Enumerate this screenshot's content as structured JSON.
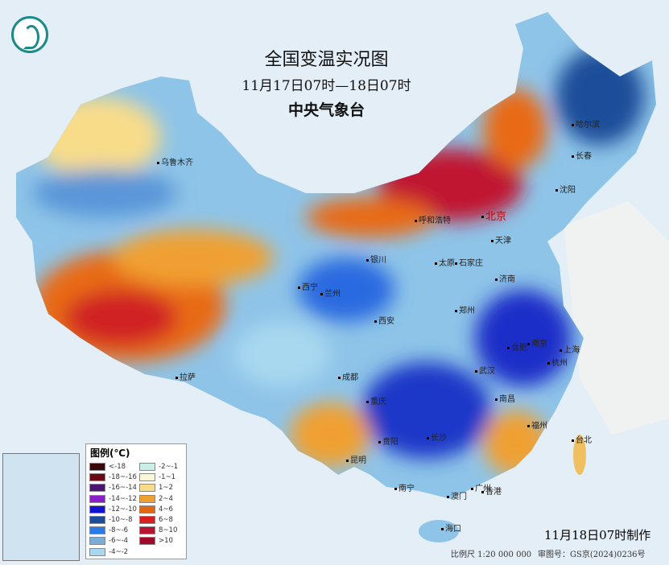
{
  "title": "全国变温实况图",
  "period": "11月17日07时—18日07时",
  "issuer": "中央气象台",
  "cities": [
    "乌鲁木齐",
    "哈尔滨",
    "长春",
    "沈阳",
    "北京",
    "天津",
    "呼和浩特",
    "银川",
    "太原",
    "石家庄",
    "济南",
    "西宁",
    "兰州",
    "郑州",
    "西安",
    "合肥",
    "南京",
    "上海",
    "武汉",
    "杭州",
    "南昌",
    "成都",
    "重庆",
    "拉萨",
    "贵阳",
    "长沙",
    "福州",
    "台北",
    "昆明",
    "南宁",
    "广州",
    "澳门",
    "香港",
    "海口"
  ],
  "legend": {
    "title": "图例(℃)",
    "items": [
      {
        "label": "<-18",
        "color": "#3a0a0a"
      },
      {
        "label": "-18~-16",
        "color": "#6b0a14"
      },
      {
        "label": "-16~-14",
        "color": "#4a1470"
      },
      {
        "label": "-14~-12",
        "color": "#8a1ec8"
      },
      {
        "label": "-12~-10",
        "color": "#1414d0"
      },
      {
        "label": "-10~-8",
        "color": "#1a4e9a"
      },
      {
        "label": "-8~-6",
        "color": "#2a7ae8"
      },
      {
        "label": "-6~-4",
        "color": "#7aaed8"
      },
      {
        "label": "-4~-2",
        "color": "#a8d8f0"
      },
      {
        "label": "-2~-1",
        "color": "#c8f0e8"
      },
      {
        "label": "-1~1",
        "color": "#f8f8d8"
      },
      {
        "label": "1~2",
        "color": "#f8dc8a"
      },
      {
        "label": "2~4",
        "color": "#f0a030"
      },
      {
        "label": "4~6",
        "color": "#e06a14"
      },
      {
        "label": "6~8",
        "color": "#d81e1e"
      },
      {
        "label": "8~10",
        "color": "#b81432"
      },
      {
        "label": ">10",
        "color": "#a00a28"
      }
    ]
  },
  "made_time": "11月18日07时制作",
  "scale": "比例尺 1:20 000 000",
  "review_no": "审图号：GS京(2024)0236号"
}
